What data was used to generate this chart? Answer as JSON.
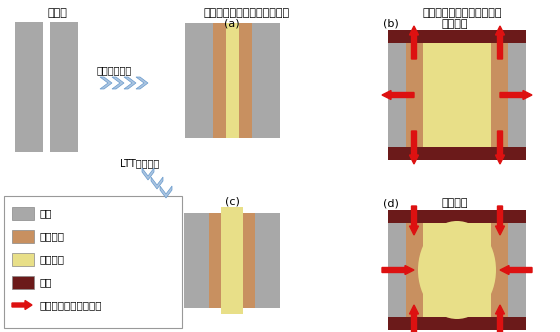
{
  "col1_title": "溶接前",
  "col2_title": "溶接後（自由な変形を仮定）",
  "col3_title": "溶接後（実際の溶接継手）",
  "label_a": "(a)",
  "label_b": "(b)",
  "label_c": "(c)",
  "label_d": "(d)",
  "text_general": "一般溶接材料",
  "text_ltt": "LTT溶接材料",
  "stress_b": "引張応力",
  "stress_d": "圧縮応力",
  "legend_items": [
    "母材",
    "熱影響部",
    "溶接金属",
    "剛体",
    "熱影響部に作用する力"
  ],
  "color_base": "#a8a8a8",
  "color_haz": "#c89060",
  "color_weld": "#e8df88",
  "color_rigid": "#6b1a1a",
  "color_arrow": "#dd1111",
  "color_chevron": "#6699cc",
  "color_bg": "#ffffff"
}
